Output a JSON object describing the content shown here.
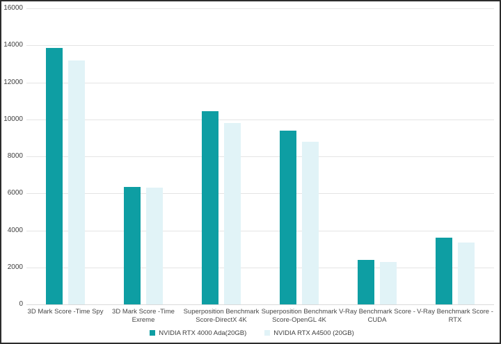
{
  "chart_data": {
    "type": "bar",
    "title": "",
    "xlabel": "",
    "ylabel": "",
    "categories": [
      "3D Mark Score -Time Spy",
      "3D Mark Score -Time Exreme",
      "Superposition Benchmark Score-DirectX 4K",
      "Superposition Benchmark Score-OpenGL 4K",
      "V-Ray Benchmark Score -CUDA",
      "V-Ray Benchmark Score -RTX"
    ],
    "series": [
      {
        "name": "NVIDIA RTX 4000 Ada(20GB)",
        "color": "#0e9ea3",
        "values": [
          13850,
          6350,
          10450,
          9400,
          2400,
          3600
        ]
      },
      {
        "name": "NVIDIA RTX A4500 (20GB)",
        "color": "#e1f3f7",
        "values": [
          13200,
          6300,
          9800,
          8800,
          2300,
          3350
        ]
      }
    ],
    "ylim": [
      0,
      16000
    ],
    "yticks": [
      0,
      2000,
      4000,
      6000,
      8000,
      10000,
      12000,
      14000,
      16000
    ],
    "grid": true,
    "legend_position": "bottom"
  },
  "styles": {
    "background": "#ffffff",
    "border_color": "#2c2c2c",
    "grid_color": "#e4e4e4",
    "axis_text_color": "#3d3d3d"
  }
}
